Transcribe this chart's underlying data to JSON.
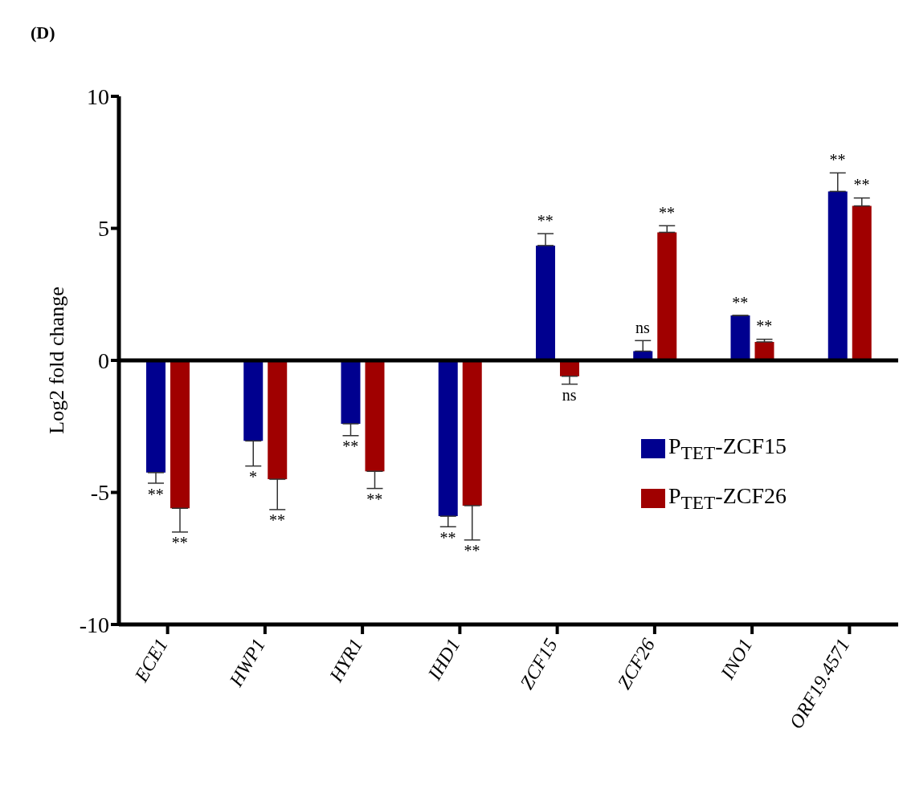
{
  "chart_data": {
    "type": "bar",
    "title": "(D)",
    "ylabel": "Log2 fold change",
    "categories": [
      "ECE1",
      "HWP1",
      "HYR1",
      "IHD1",
      "ZCF15",
      "ZCF26",
      "INO1",
      "ORF19.4571"
    ],
    "series": [
      {
        "name": "P$_{TET}$-ZCF15",
        "color": "#00008f",
        "values": [
          -4.25,
          -3.05,
          -2.4,
          -5.9,
          4.35,
          0.35,
          1.7,
          6.4
        ],
        "errors": [
          [
            -4.65,
            -4.25
          ],
          [
            -4.0,
            -3.05
          ],
          [
            -2.85,
            -2.4
          ],
          [
            -6.3,
            -5.9
          ],
          [
            4.35,
            4.8
          ],
          [
            0.35,
            0.75
          ],
          null,
          [
            6.4,
            7.1
          ]
        ]
      },
      {
        "name": "P$_{TET}$-ZCF26",
        "color": "#a00000",
        "values": [
          -5.6,
          -4.5,
          -4.2,
          -5.5,
          -0.6,
          4.85,
          0.7,
          5.85
        ],
        "errors": [
          [
            -6.5,
            -5.6
          ],
          [
            -5.65,
            -4.5
          ],
          [
            -4.85,
            -4.2
          ],
          [
            -6.8,
            -5.5
          ],
          [
            -0.9,
            -0.6
          ],
          [
            4.85,
            5.1
          ],
          [
            0.7,
            0.8
          ],
          [
            5.85,
            6.15
          ]
        ]
      }
    ],
    "ylim": [
      -10,
      10
    ],
    "yticks": [
      -10,
      -5,
      0,
      5,
      10
    ],
    "legend": "right",
    "ref_lines": [
      {
        "axis": "y",
        "value": 0,
        "color": "#000000"
      }
    ],
    "annotations": [
      "**",
      "**",
      "*",
      "**",
      "**",
      "**",
      "**",
      "**",
      "**",
      "ns",
      "ns",
      "**",
      "**",
      "**",
      "**",
      "**"
    ]
  }
}
